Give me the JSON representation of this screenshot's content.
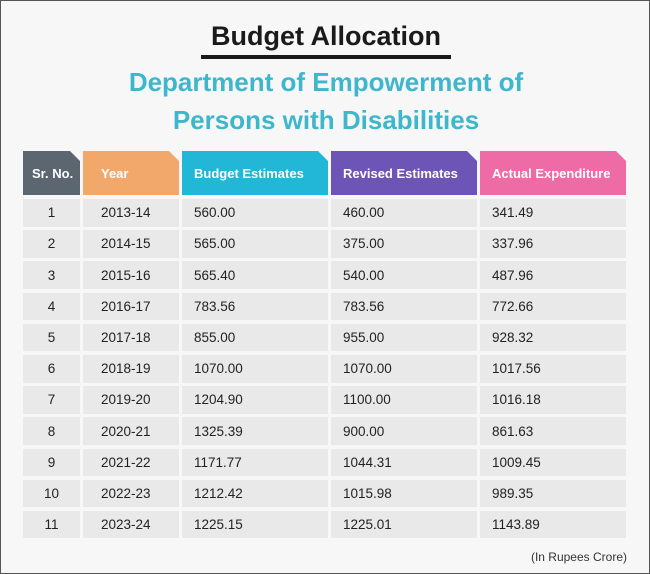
{
  "title": "Budget Allocation",
  "subtitle_line1": "Department of Empowerment of",
  "subtitle_line2": "Persons with Disabilities",
  "note": "(In Rupees Crore)",
  "colors": {
    "title_accent": "#3eb6cc",
    "header_srno": "#5b6670",
    "header_year": "#f2a86a",
    "header_be": "#22b7d6",
    "header_re": "#6d55b8",
    "header_ae": "#ee6ba6",
    "row_bg": "#e9e9ea"
  },
  "chart_data": {
    "type": "table",
    "columns": [
      "Sr. No.",
      "Year",
      "Budget Estimates",
      "Revised Estimates",
      "Actual Expenditure"
    ],
    "rows": [
      [
        "1",
        "2013-14",
        "560.00",
        "460.00",
        "341.49"
      ],
      [
        "2",
        "2014-15",
        "565.00",
        "375.00",
        "337.96"
      ],
      [
        "3",
        "2015-16",
        "565.40",
        "540.00",
        "487.96"
      ],
      [
        "4",
        "2016-17",
        "783.56",
        "783.56",
        "772.66"
      ],
      [
        "5",
        "2017-18",
        "855.00",
        "955.00",
        "928.32"
      ],
      [
        "6",
        "2018-19",
        "1070.00",
        "1070.00",
        "1017.56"
      ],
      [
        "7",
        "2019-20",
        "1204.90",
        "1100.00",
        "1016.18"
      ],
      [
        "8",
        "2020-21",
        "1325.39",
        "900.00",
        "861.63"
      ],
      [
        "9",
        "2021-22",
        "1171.77",
        "1044.31",
        "1009.45"
      ],
      [
        "10",
        "2022-23",
        "1212.42",
        "1015.98",
        "989.35"
      ],
      [
        "11",
        "2023-24",
        "1225.15",
        "1225.01",
        "1143.89"
      ]
    ]
  }
}
